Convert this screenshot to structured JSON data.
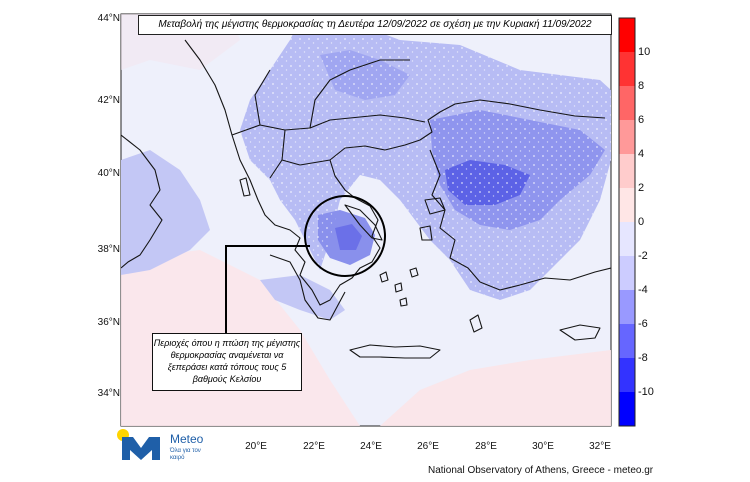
{
  "map": {
    "title": "Μεταβολή της μέγιστης θερμοκρασίας τη Δευτέρα 12/09/2022 σε σχέση με την Κυριακή 11/09/2022",
    "annotation": "Περιοχές όπου η πτώση της μέγιστης θερμοκρασίας αναμένεται να ξεπεράσει κατά τόπους τους 5 βαθμούς Κελσίου",
    "lat_labels": [
      "44°N",
      "42°N",
      "40°N",
      "38°N",
      "36°N",
      "34°N"
    ],
    "lon_labels": [
      "20°E",
      "22°E",
      "24°E",
      "26°E",
      "28°E",
      "30°E",
      "32°E"
    ],
    "credit": "National Observatory of Athens, Greece - meteo.gr"
  },
  "colorbar": {
    "labels": [
      "10",
      "8",
      "6",
      "4",
      "2",
      "0",
      "-2",
      "-4",
      "-6",
      "-8",
      "-10"
    ],
    "colors": [
      "#ff0000",
      "#ff3333",
      "#ff6666",
      "#ff9999",
      "#ffcccc",
      "#ffe6e6",
      "#e6e6ff",
      "#ccccff",
      "#9999ff",
      "#6666ff",
      "#3333ff",
      "#0000ff"
    ]
  },
  "logo": {
    "name": "Meteo",
    "tagline": "Όλα για τον καιρό",
    "colors": {
      "sun": "#ffd400",
      "mark": "#1f5fa8"
    }
  }
}
